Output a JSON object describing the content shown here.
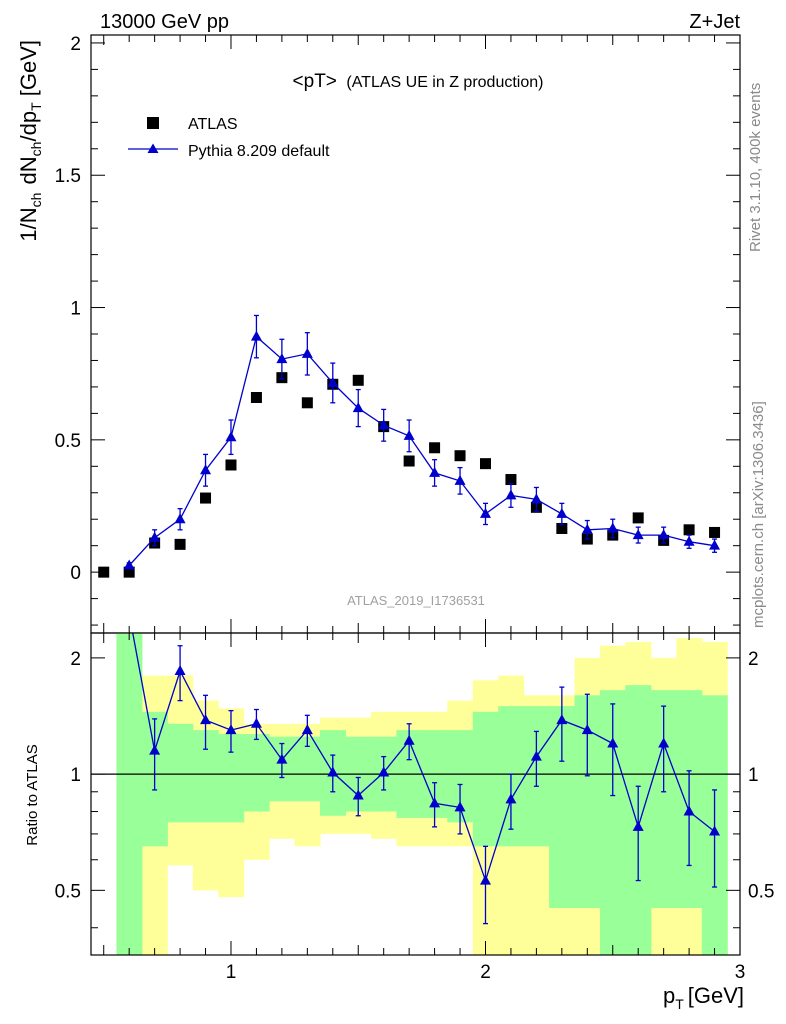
{
  "header": {
    "left": "13000 GeV pp",
    "right": "Z+Jet"
  },
  "side": {
    "rivet": "Rivet 3.1.10,  400k events",
    "mcplots": "mcplots.cern.ch [arXiv:1306.3436]"
  },
  "colors": {
    "mc": "#0000cc",
    "band_inner": "#99ff99",
    "band_outer": "#ffff99",
    "data": "#000000"
  },
  "chart_data": [
    {
      "type": "scatter",
      "title": "<pT> (ATLAS UE in Z production)",
      "title_main": "<pT>",
      "title_rest": "(ATLAS UE in Z production)",
      "watermark": "ATLAS_2019_I1736531",
      "ylabel": "1/N_ch dN_ch/dp_T [GeV]",
      "ylim": [
        -0.23,
        2.03
      ],
      "xlim": [
        0.45,
        3.0
      ],
      "yticks": [
        0,
        0.5,
        1,
        1.5,
        2
      ],
      "ytick_labels": [
        "0",
        "0.5",
        "1",
        "1.5",
        "2"
      ],
      "legend_position": "top-left",
      "series": [
        {
          "name": "ATLAS",
          "marker": "square",
          "x": [
            0.5,
            0.6,
            0.7,
            0.8,
            0.9,
            1.0,
            1.1,
            1.2,
            1.3,
            1.4,
            1.5,
            1.6,
            1.7,
            1.8,
            1.9,
            2.0,
            2.1,
            2.2,
            2.3,
            2.4,
            2.5,
            2.6,
            2.7,
            2.8,
            2.9
          ],
          "y": [
            0.0,
            0.0,
            0.11,
            0.105,
            0.28,
            0.405,
            0.66,
            0.735,
            0.64,
            0.71,
            0.725,
            0.55,
            0.42,
            0.47,
            0.44,
            0.41,
            0.35,
            0.245,
            0.165,
            0.125,
            0.14,
            0.205,
            0.12,
            0.16,
            0.15
          ]
        },
        {
          "name": "Pythia 8.209 default",
          "marker": "triangle",
          "x": [
            0.6,
            0.7,
            0.8,
            0.9,
            1.0,
            1.1,
            1.2,
            1.3,
            1.4,
            1.5,
            1.6,
            1.7,
            1.8,
            1.9,
            2.0,
            2.1,
            2.2,
            2.3,
            2.4,
            2.5,
            2.6,
            2.7,
            2.8,
            2.9
          ],
          "y": [
            0.025,
            0.13,
            0.2,
            0.385,
            0.51,
            0.89,
            0.805,
            0.825,
            0.715,
            0.62,
            0.555,
            0.515,
            0.375,
            0.345,
            0.22,
            0.29,
            0.275,
            0.22,
            0.16,
            0.165,
            0.14,
            0.14,
            0.115,
            0.1
          ],
          "yerr": [
            0.01,
            0.03,
            0.04,
            0.06,
            0.065,
            0.08,
            0.075,
            0.08,
            0.075,
            0.07,
            0.06,
            0.06,
            0.05,
            0.05,
            0.04,
            0.045,
            0.045,
            0.04,
            0.035,
            0.035,
            0.03,
            0.03,
            0.025,
            0.025
          ]
        }
      ]
    },
    {
      "type": "line",
      "ylabel": "Ratio to ATLAS",
      "xlabel": "p_T [GeV]",
      "xlim": [
        0.45,
        3.0
      ],
      "ylim": [
        0.34,
        2.32
      ],
      "xticks": [
        1,
        2,
        3
      ],
      "xtick_labels": [
        "1",
        "2",
        "3"
      ],
      "yticks": [
        0.5,
        1,
        2
      ],
      "ytick_labels": [
        "0.5",
        "1",
        "2"
      ],
      "reference_line": 1.0,
      "bands": {
        "bin_edges": [
          0.55,
          0.65,
          0.75,
          0.85,
          0.95,
          1.05,
          1.15,
          1.25,
          1.35,
          1.45,
          1.55,
          1.65,
          1.75,
          1.85,
          1.95,
          2.05,
          2.15,
          2.25,
          2.35,
          2.45,
          2.55,
          2.65,
          2.75,
          2.85,
          2.95
        ],
        "inner_low": [
          0.34,
          0.65,
          0.75,
          0.75,
          0.75,
          0.8,
          0.85,
          0.85,
          0.78,
          0.8,
          0.8,
          0.77,
          0.77,
          0.75,
          0.65,
          0.65,
          0.65,
          0.45,
          0.45,
          0.34,
          0.34,
          0.45,
          0.45,
          0.34
        ],
        "inner_high": [
          2.32,
          1.45,
          1.35,
          1.3,
          1.27,
          1.27,
          1.25,
          1.25,
          1.3,
          1.25,
          1.25,
          1.3,
          1.3,
          1.3,
          1.45,
          1.5,
          1.5,
          1.5,
          1.6,
          1.65,
          1.7,
          1.65,
          1.65,
          1.6
        ],
        "outer_low": [
          0.34,
          0.34,
          0.58,
          0.5,
          0.48,
          0.6,
          0.68,
          0.65,
          0.7,
          0.7,
          0.68,
          0.65,
          0.65,
          0.65,
          0.34,
          0.34,
          0.34,
          0.34,
          0.34,
          0.34,
          0.34,
          0.34,
          0.34,
          0.34
        ],
        "outer_high": [
          2.32,
          1.8,
          1.8,
          1.55,
          1.48,
          1.35,
          1.35,
          1.35,
          1.4,
          1.4,
          1.45,
          1.45,
          1.45,
          1.55,
          1.75,
          1.8,
          1.6,
          1.6,
          2.0,
          2.15,
          2.2,
          2.0,
          2.25,
          2.2
        ]
      },
      "series": [
        {
          "name": "Pythia 8.209 default",
          "x": [
            0.6,
            0.7,
            0.8,
            0.9,
            1.0,
            1.1,
            1.2,
            1.3,
            1.4,
            1.5,
            1.6,
            1.7,
            1.8,
            1.9,
            2.0,
            2.1,
            2.2,
            2.3,
            2.4,
            2.5,
            2.6,
            2.7,
            2.8,
            2.9
          ],
          "y": [
            2.6,
            1.15,
            1.85,
            1.38,
            1.3,
            1.35,
            1.09,
            1.3,
            1.01,
            0.88,
            1.01,
            1.22,
            0.84,
            0.82,
            0.53,
            0.86,
            1.11,
            1.38,
            1.3,
            1.2,
            0.73,
            1.2,
            0.8,
            0.71
          ],
          "yerr": [
            0.0,
            0.24,
            0.3,
            0.22,
            0.16,
            0.12,
            0.11,
            0.12,
            0.11,
            0.1,
            0.1,
            0.13,
            0.11,
            0.12,
            0.12,
            0.14,
            0.18,
            0.3,
            0.31,
            0.32,
            0.2,
            0.3,
            0.22,
            0.2
          ]
        }
      ]
    }
  ]
}
